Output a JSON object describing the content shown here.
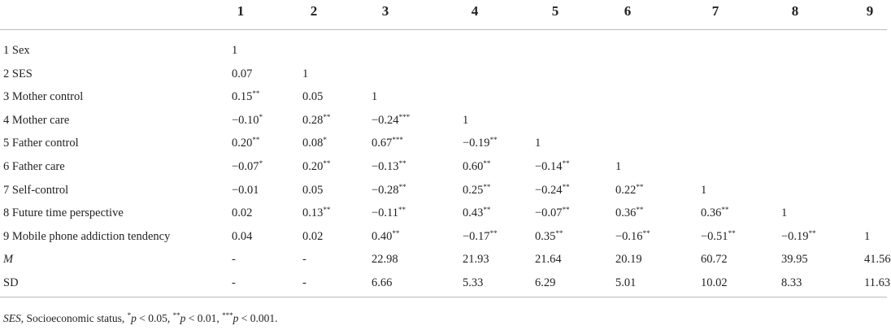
{
  "table": {
    "header": [
      "1",
      "2",
      "3",
      "4",
      "5",
      "6",
      "7",
      "8",
      "9"
    ],
    "rows": [
      {
        "label": "1 Sex",
        "cells": [
          "1"
        ]
      },
      {
        "label": "2 SES",
        "cells": [
          "0.07",
          "1"
        ]
      },
      {
        "label": "3 Mother control",
        "cells": [
          {
            "text": "0.15",
            "sup": "**"
          },
          "0.05",
          "1"
        ]
      },
      {
        "label": "4 Mother care",
        "cells": [
          {
            "text": "−0.10",
            "sup": "*"
          },
          {
            "text": "0.28",
            "sup": "**"
          },
          {
            "text": "−0.24",
            "sup": "***"
          },
          "1"
        ]
      },
      {
        "label": "5 Father control",
        "cells": [
          {
            "text": "0.20",
            "sup": "**"
          },
          {
            "text": "0.08",
            "sup": "*"
          },
          {
            "text": "0.67",
            "sup": "***"
          },
          {
            "text": "−0.19",
            "sup": "**"
          },
          "1"
        ]
      },
      {
        "label": "6 Father care",
        "cells": [
          {
            "text": "−0.07",
            "sup": "*"
          },
          {
            "text": "0.20",
            "sup": "**"
          },
          {
            "text": "−0.13",
            "sup": "**"
          },
          {
            "text": "0.60",
            "sup": "**"
          },
          {
            "text": "−0.14",
            "sup": "**"
          },
          "1"
        ]
      },
      {
        "label": "7 Self-control",
        "cells": [
          "−0.01",
          "0.05",
          {
            "text": "−0.28",
            "sup": "**"
          },
          {
            "text": "0.25",
            "sup": "**"
          },
          {
            "text": "−0.24",
            "sup": "**"
          },
          {
            "text": "0.22",
            "sup": "**"
          },
          "1"
        ]
      },
      {
        "label": "8 Future time perspective",
        "cells": [
          "0.02",
          {
            "text": "0.13",
            "sup": "**"
          },
          {
            "text": "−0.11",
            "sup": "**"
          },
          {
            "text": "0.43",
            "sup": "**"
          },
          {
            "text": "−0.07",
            "sup": "**"
          },
          {
            "text": "0.36",
            "sup": "**"
          },
          {
            "text": "0.36",
            "sup": "**"
          },
          "1"
        ]
      },
      {
        "label": "9 Mobile phone addiction tendency",
        "cells": [
          "0.04",
          "0.02",
          {
            "text": "0.40",
            "sup": "**"
          },
          {
            "text": "−0.17",
            "sup": "**"
          },
          {
            "text": "0.35",
            "sup": "**"
          },
          {
            "text": "−0.16",
            "sup": "**"
          },
          {
            "text": "−0.51",
            "sup": "**"
          },
          {
            "text": "−0.19",
            "sup": "**"
          },
          "1"
        ]
      },
      {
        "label": "M",
        "label_style": "italic",
        "cells": [
          "-",
          "-",
          "22.98",
          "21.93",
          "21.64",
          "20.19",
          "60.72",
          "39.95",
          "41.56"
        ]
      },
      {
        "label": "SD",
        "cells": [
          "-",
          "-",
          "6.66",
          "5.33",
          "6.29",
          "5.01",
          "10.02",
          "8.33",
          "11.63"
        ]
      }
    ]
  },
  "footnote": [
    {
      "text": "SES",
      "style": "italic"
    },
    {
      "text": ", Socioeconomic status, "
    },
    {
      "text": "*",
      "style": "sup"
    },
    {
      "text": "p",
      "style": "italic"
    },
    {
      "text": " < 0.05, "
    },
    {
      "text": "**",
      "style": "sup"
    },
    {
      "text": "p",
      "style": "italic"
    },
    {
      "text": " < 0.01, "
    },
    {
      "text": "***",
      "style": "sup"
    },
    {
      "text": "p",
      "style": "italic"
    },
    {
      "text": " < 0.001."
    }
  ]
}
